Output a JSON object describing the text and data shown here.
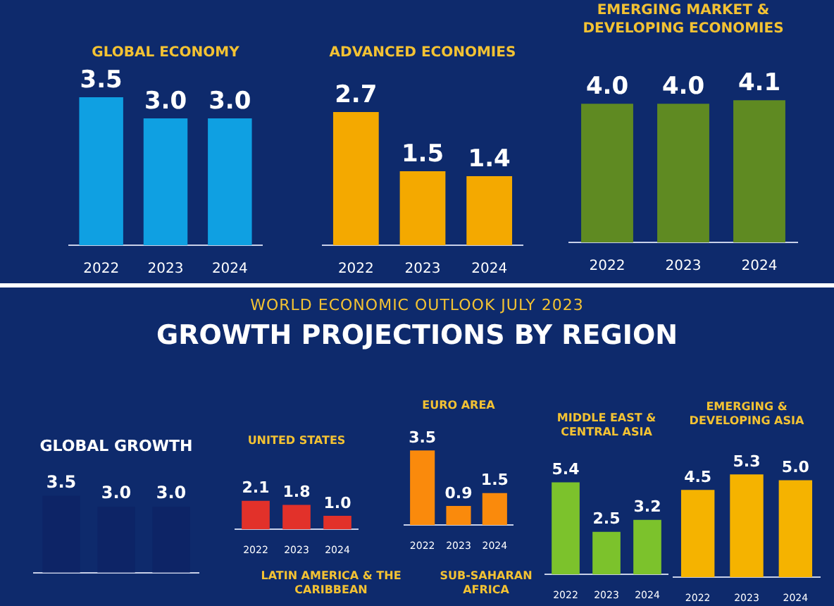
{
  "chart_data": [
    {
      "type": "bar",
      "title": "GLOBAL ECONOMY",
      "categories": [
        "2022",
        "2023",
        "2024"
      ],
      "values": [
        3.5,
        3.0,
        3.0
      ],
      "value_labels": [
        "3.5",
        "3.0",
        "3.0"
      ],
      "color": "#0fa0e2"
    },
    {
      "type": "bar",
      "title": "ADVANCED ECONOMIES",
      "categories": [
        "2022",
        "2023",
        "2024"
      ],
      "values": [
        2.7,
        1.5,
        1.4
      ],
      "value_labels": [
        "2.7",
        "1.5",
        "1.4"
      ],
      "color": "#f4a900"
    },
    {
      "type": "bar",
      "title": "EMERGING MARKET & DEVELOPING ECONOMIES",
      "categories": [
        "2022",
        "2023",
        "2024"
      ],
      "values": [
        4.0,
        4.0,
        4.1
      ],
      "value_labels": [
        "4.0",
        "4.0",
        "4.1"
      ],
      "color": "#5f8a22"
    },
    {
      "type": "other",
      "subtitle": "WORLD ECONOMIC OUTLOOK JULY 2023",
      "title": "GROWTH PROJECTIONS BY REGION"
    },
    {
      "type": "bar",
      "title": "GLOBAL GROWTH",
      "categories": [
        null,
        null,
        null
      ],
      "values": [
        3.5,
        3.0,
        3.0
      ],
      "value_labels": [
        "3.5",
        "3.0",
        "3.0"
      ],
      "color": "#0d2466"
    },
    {
      "type": "bar",
      "title": "UNITED STATES",
      "categories": [
        "2022",
        "2023",
        "2024"
      ],
      "values": [
        2.1,
        1.8,
        1.0
      ],
      "value_labels": [
        "2.1",
        "1.8",
        "1.0"
      ],
      "color": "#e2312a"
    },
    {
      "type": "bar",
      "title": "EURO AREA",
      "categories": [
        "2022",
        "2023",
        "2024"
      ],
      "values": [
        3.5,
        0.9,
        1.5
      ],
      "value_labels": [
        "3.5",
        "0.9",
        "1.5"
      ],
      "color": "#fa8a0c"
    },
    {
      "type": "bar",
      "title": "MIDDLE EAST & CENTRAL ASIA",
      "categories": [
        "2022",
        "2023",
        "2024"
      ],
      "values": [
        5.4,
        2.5,
        3.2
      ],
      "value_labels": [
        "5.4",
        "2.5",
        "3.2"
      ],
      "color": "#7cc22c"
    },
    {
      "type": "bar",
      "title": "EMERGING & DEVELOPING ASIA",
      "categories": [
        "2022",
        "2023",
        "2024"
      ],
      "values": [
        4.5,
        5.3,
        5.0
      ],
      "value_labels": [
        "4.5",
        "5.3",
        "5.0"
      ],
      "color": "#f5b300"
    },
    {
      "type": "other",
      "title": "LATIN AMERICA & THE CARIBBEAN"
    },
    {
      "type": "other",
      "title": "SUB-SAHARAN AFRICA"
    }
  ]
}
